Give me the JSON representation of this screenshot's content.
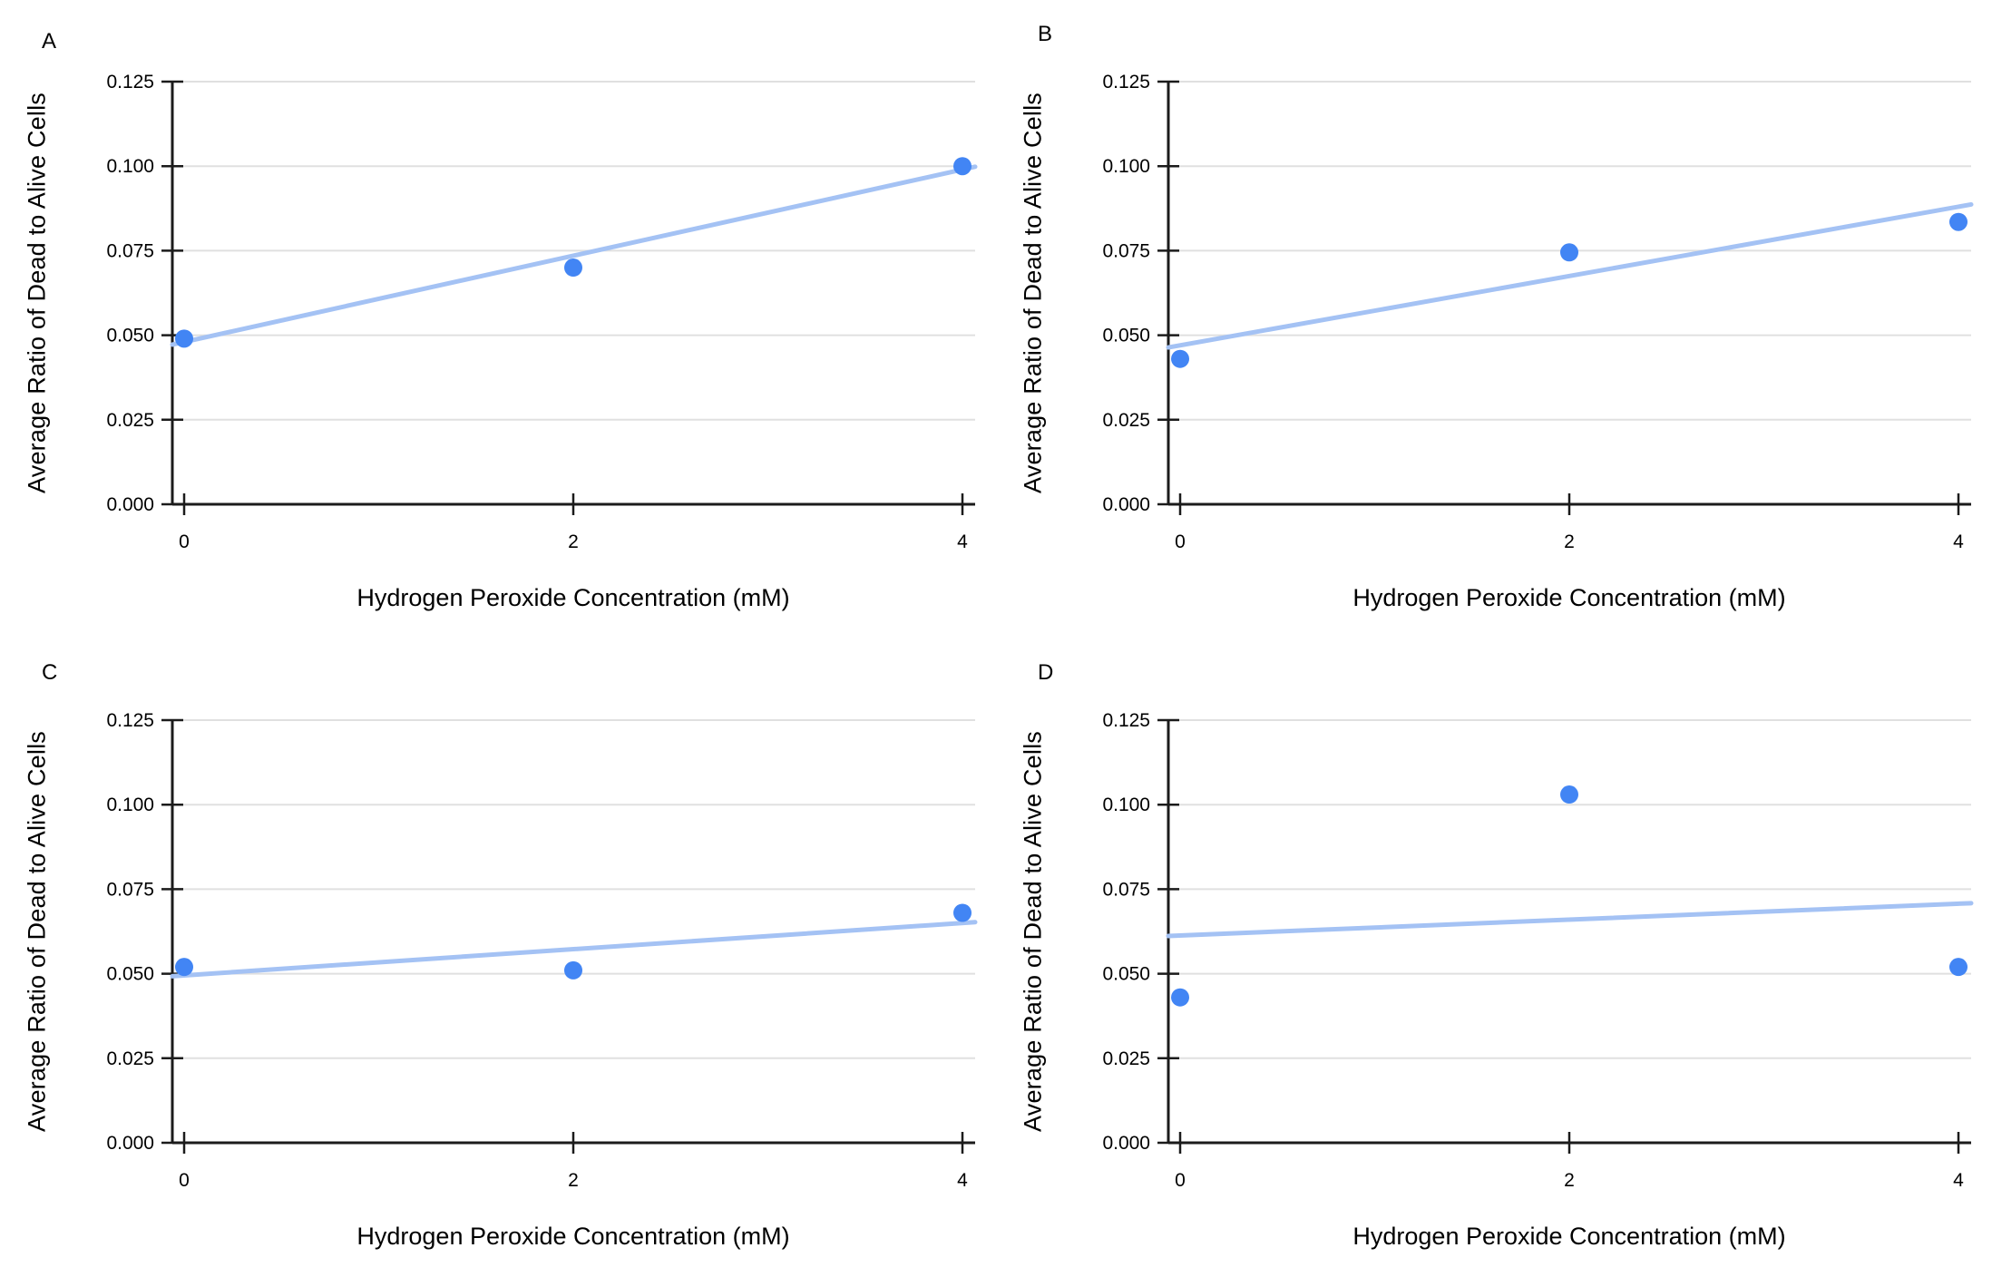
{
  "figure": {
    "background": "#ffffff",
    "rows": 2,
    "cols": 2
  },
  "axes": {
    "xlabel": "Hydrogen Peroxide Concentration (mM)",
    "ylabel": "Average Ratio of Dead to Alive Cells",
    "xlim": [
      0,
      4
    ],
    "ylim": [
      0,
      0.125
    ],
    "xtick_values": [
      0,
      2,
      4
    ],
    "xtick_labels": [
      "0",
      "2",
      "4"
    ],
    "ytick_values": [
      0,
      0.025,
      0.05,
      0.075,
      0.1,
      0.125
    ],
    "ytick_labels": [
      "0.000",
      "0.025",
      "0.050",
      "0.075",
      "0.100",
      "0.125"
    ],
    "grid": true,
    "legend": "none"
  },
  "colors": {
    "point": "#4285f4",
    "trendline": "#a4c2f4",
    "gridline": "#e0e0e0",
    "axis": "#1b1b1b",
    "text": "#000000"
  },
  "chart_data": [
    {
      "type": "scatter",
      "panel_label": "A",
      "title": "",
      "xlabel": "Hydrogen Peroxide Concentration (mM)",
      "ylabel": "Average Ratio of Dead to Alive Cells",
      "x": [
        0,
        2,
        4
      ],
      "y": [
        0.049,
        0.07,
        0.1
      ],
      "trendline": {
        "y_at_x0": 0.048,
        "y_at_x4": 0.099
      },
      "xlim": [
        0,
        4
      ],
      "ylim": [
        0,
        0.125
      ]
    },
    {
      "type": "scatter",
      "panel_label": "B",
      "title": "",
      "xlabel": "Hydrogen Peroxide Concentration (mM)",
      "ylabel": "Average Ratio of Dead to Alive Cells",
      "x": [
        0,
        2,
        4
      ],
      "y": [
        0.043,
        0.0745,
        0.0835
      ],
      "trendline": {
        "y_at_x0": 0.047,
        "y_at_x4": 0.088
      },
      "xlim": [
        0,
        4
      ],
      "ylim": [
        0,
        0.125
      ]
    },
    {
      "type": "scatter",
      "panel_label": "C",
      "title": "",
      "xlabel": "Hydrogen Peroxide Concentration (mM)",
      "ylabel": "Average Ratio of Dead to Alive Cells",
      "x": [
        0,
        2,
        4
      ],
      "y": [
        0.052,
        0.051,
        0.068
      ],
      "trendline": {
        "y_at_x0": 0.0495,
        "y_at_x4": 0.065
      },
      "xlim": [
        0,
        4
      ],
      "ylim": [
        0,
        0.125
      ]
    },
    {
      "type": "scatter",
      "panel_label": "D",
      "title": "",
      "xlabel": "Hydrogen Peroxide Concentration (mM)",
      "ylabel": "Average Ratio of Dead to Alive Cells",
      "x": [
        0,
        2,
        4
      ],
      "y": [
        0.043,
        0.103,
        0.052
      ],
      "trendline": {
        "y_at_x0": 0.0613,
        "y_at_x4": 0.0707
      },
      "xlim": [
        0,
        4
      ],
      "ylim": [
        0,
        0.125
      ]
    }
  ]
}
